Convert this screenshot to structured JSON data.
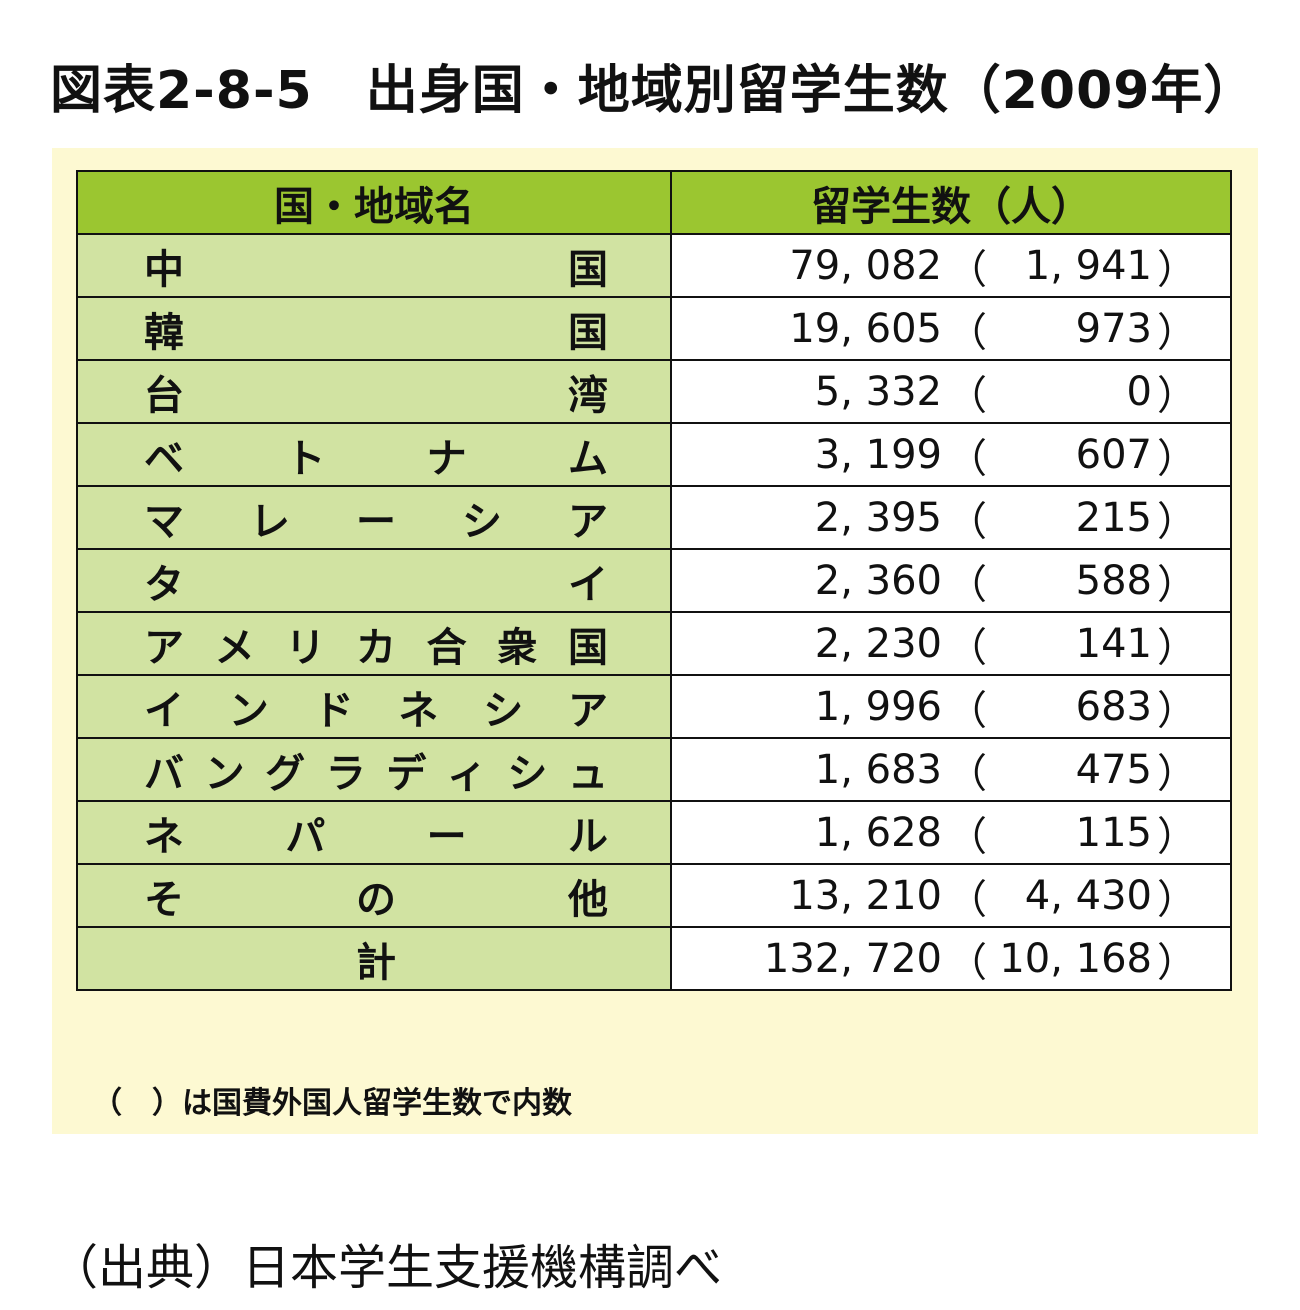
{
  "title": "図表2-8-5　出身国・地域別留学生数（2009年）",
  "table": {
    "headers": [
      "国・地域名",
      "留学生数（人）"
    ],
    "rows": [
      {
        "name": [
          "中",
          "国"
        ],
        "total": "79, 082",
        "gov": "1, 941"
      },
      {
        "name": [
          "韓",
          "国"
        ],
        "total": "19, 605",
        "gov": "973"
      },
      {
        "name": [
          "台",
          "湾"
        ],
        "total": "5, 332",
        "gov": "0"
      },
      {
        "name": [
          "ベ",
          "ト",
          "ナ",
          "ム"
        ],
        "total": "3, 199",
        "gov": "607"
      },
      {
        "name": [
          "マ",
          "レ",
          "ー",
          "シ",
          "ア"
        ],
        "total": "2, 395",
        "gov": "215"
      },
      {
        "name": [
          "タ",
          "イ"
        ],
        "total": "2, 360",
        "gov": "588"
      },
      {
        "name": [
          "ア",
          "メ",
          "リ",
          "カ",
          "合",
          "衆",
          "国"
        ],
        "total": "2, 230",
        "gov": "141"
      },
      {
        "name": [
          "イ",
          "ン",
          "ド",
          "ネ",
          "シ",
          "ア"
        ],
        "total": "1, 996",
        "gov": "683"
      },
      {
        "name": [
          "バ",
          "ン",
          "グ",
          "ラ",
          "デ",
          "ィ",
          "シ",
          "ュ"
        ],
        "total": "1, 683",
        "gov": "475"
      },
      {
        "name": [
          "ネ",
          "パ",
          "ー",
          "ル"
        ],
        "total": "1, 628",
        "gov": "115"
      },
      {
        "name": [
          "そ",
          "の",
          "他"
        ],
        "total": "13, 210",
        "gov": "4, 430"
      },
      {
        "name": [
          "計"
        ],
        "total": "132, 720",
        "gov": "10, 168",
        "center": true
      }
    ],
    "paren_open": "（",
    "paren_close": "）"
  },
  "note": "（　）は国費外国人留学生数で内数",
  "source": "（出典）日本学生支援機構調べ"
}
